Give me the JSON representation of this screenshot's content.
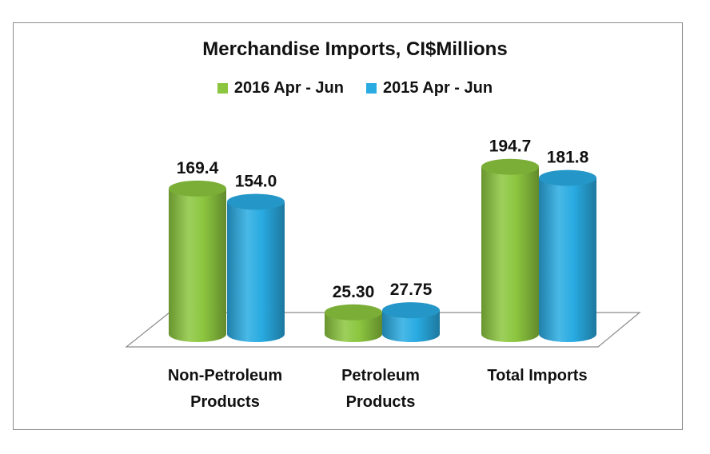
{
  "chart_data": {
    "type": "bar",
    "title": "Merchandise Imports, CI$Millions",
    "xlabel": "",
    "ylabel": "",
    "ylim": [
      0,
      200
    ],
    "grid": false,
    "legend_position": "top-center",
    "categories": [
      [
        "Non-Petroleum",
        "Products"
      ],
      [
        "Petroleum",
        "Products"
      ],
      [
        "Total Imports"
      ]
    ],
    "series": [
      {
        "name": "2016 Apr - Jun",
        "color": "#8cc63f",
        "values": [
          169.4,
          25.3,
          194.7
        ],
        "labels": [
          "169.4",
          "25.30",
          "194.7"
        ]
      },
      {
        "name": "2015 Apr - Jun",
        "color": "#29abe2",
        "values": [
          154.0,
          27.75,
          181.8
        ],
        "labels": [
          "154.0",
          "27.75",
          "181.8"
        ]
      }
    ]
  }
}
